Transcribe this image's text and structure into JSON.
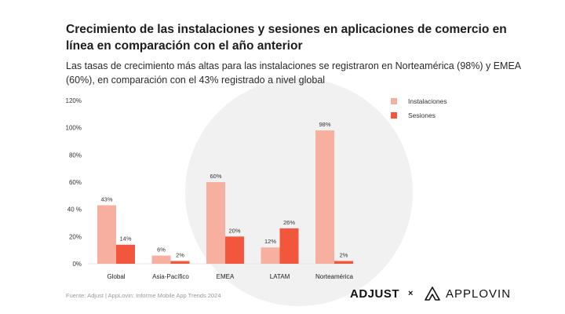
{
  "header": {
    "title": "Crecimiento de las instalaciones y sesiones en aplicaciones de comercio en línea en comparación con el año anterior",
    "subtitle": "Las tasas de crecimiento más altas para las instalaciones se registraron en Norteamérica (98%) y EMEA (60%), en comparación con el 43% registrado a nivel global"
  },
  "footer": {
    "source": "Fuente: Adjust | AppLovin: Informe Mobile App Trends 2024",
    "brand_adjust": "ADJUST",
    "brand_x": "×",
    "brand_applovin": "APPLOVIN"
  },
  "colors": {
    "installs": "#f7b0a0",
    "sessions": "#f2563d",
    "watermark": "#f1f1f1"
  },
  "chart_data": {
    "type": "bar",
    "title": "Crecimiento de las instalaciones y sesiones en aplicaciones de comercio en línea en comparación con el año anterior",
    "categories": [
      "Global",
      "Asia-Pacífico",
      "EMEA",
      "LATAM",
      "Norteamérica"
    ],
    "series": [
      {
        "name": "Instalaciones",
        "values": [
          43,
          6,
          60,
          12,
          98
        ],
        "labels": [
          "43%",
          "6%",
          "60%",
          "12%",
          "98%"
        ]
      },
      {
        "name": "Sesiones",
        "values": [
          14,
          2,
          20,
          26,
          2
        ],
        "labels": [
          "14%",
          "2%",
          "20%",
          "26%",
          "2%"
        ]
      }
    ],
    "ylim": [
      0,
      120
    ],
    "yticks": [
      0,
      20,
      40,
      60,
      80,
      100,
      120
    ],
    "ytick_labels": [
      "0%",
      "20%",
      "40 %",
      "60%",
      "80%",
      "100%",
      "120%"
    ],
    "xlabel": "",
    "ylabel": "",
    "grid": false,
    "legend_position": "top-right"
  }
}
